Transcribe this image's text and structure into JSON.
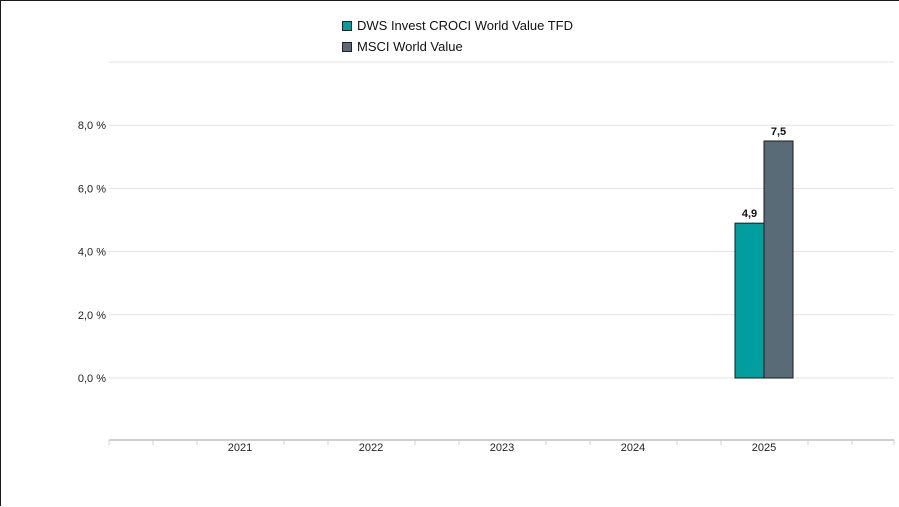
{
  "chart_data": {
    "type": "bar",
    "categories": [
      "2021",
      "2022",
      "2023",
      "2024",
      "2025"
    ],
    "series": [
      {
        "name": "DWS Invest CROCI World Value TFD",
        "color": "#009E9E",
        "values": [
          null,
          null,
          null,
          null,
          4.9
        ],
        "labels": [
          null,
          null,
          null,
          null,
          "4,9"
        ]
      },
      {
        "name": "MSCI World Value",
        "color": "#5A6B78",
        "values": [
          null,
          null,
          null,
          null,
          7.5
        ],
        "labels": [
          null,
          null,
          null,
          null,
          "7,5"
        ]
      }
    ],
    "y_ticks": [
      0,
      2,
      4,
      6,
      8
    ],
    "y_tick_labels": [
      "0,0 %",
      "2,0 %",
      "4,0 %",
      "6,0 %",
      "8,0 %"
    ],
    "ylim": [
      -2,
      10
    ],
    "title": "",
    "xlabel": "",
    "ylabel": "",
    "grid": true,
    "legend_position": "top-center"
  }
}
